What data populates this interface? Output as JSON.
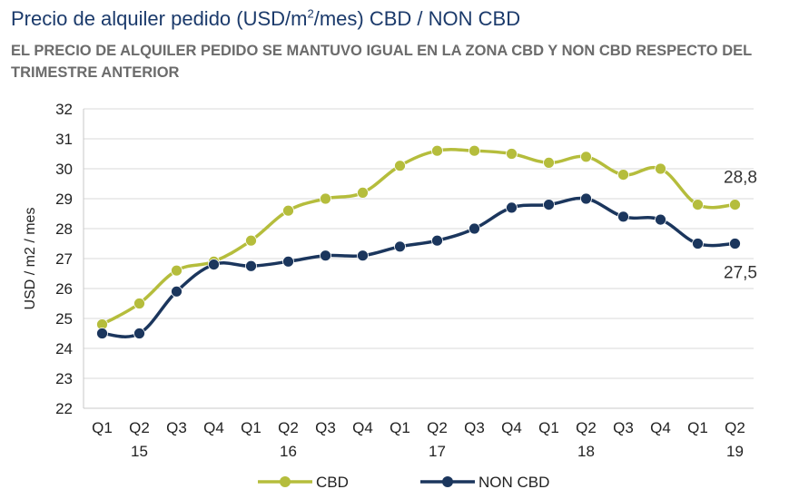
{
  "title": {
    "pre": "Precio de alquiler pedido (USD/m",
    "sup": "2",
    "post": "/mes) CBD / NON CBD"
  },
  "subtitle": "EL PRECIO DE ALQUILER PEDIDO SE MANTUVO IGUAL EN LA ZONA CBD Y NON CBD RESPECTO DEL TRIMESTRE ANTERIOR",
  "chart_data": {
    "type": "line",
    "ylabel": "USD / m2 / mes",
    "ylim": [
      22,
      32
    ],
    "yticks": [
      "22",
      "23",
      "24",
      "25",
      "26",
      "27",
      "28",
      "29",
      "30",
      "31",
      "32"
    ],
    "grid": "horizontal",
    "legend_position": "bottom",
    "categories": [
      "Q1",
      "Q2",
      "Q3",
      "Q4",
      "Q1",
      "Q2",
      "Q3",
      "Q4",
      "Q1",
      "Q2",
      "Q3",
      "Q4",
      "Q1",
      "Q2",
      "Q3",
      "Q4",
      "Q1",
      "Q2"
    ],
    "year_labels": [
      {
        "index": 1,
        "label": "15"
      },
      {
        "index": 5,
        "label": "16"
      },
      {
        "index": 9,
        "label": "17"
      },
      {
        "index": 13,
        "label": "18"
      },
      {
        "index": 17,
        "label": "19"
      }
    ],
    "series": [
      {
        "name": "CBD",
        "color": "#b5bd3c",
        "values": [
          24.8,
          25.5,
          26.6,
          26.9,
          27.6,
          28.6,
          29.0,
          29.2,
          30.1,
          30.6,
          30.6,
          30.5,
          30.2,
          30.4,
          29.8,
          30.0,
          28.8,
          28.8
        ],
        "end_label": "28,8"
      },
      {
        "name": "NON CBD",
        "color": "#1b365d",
        "values": [
          24.5,
          24.5,
          25.9,
          26.8,
          26.75,
          26.9,
          27.1,
          27.1,
          27.4,
          27.6,
          28.0,
          28.7,
          28.8,
          29.0,
          28.4,
          28.3,
          27.5,
          27.5
        ],
        "end_label": "27,5"
      }
    ]
  }
}
